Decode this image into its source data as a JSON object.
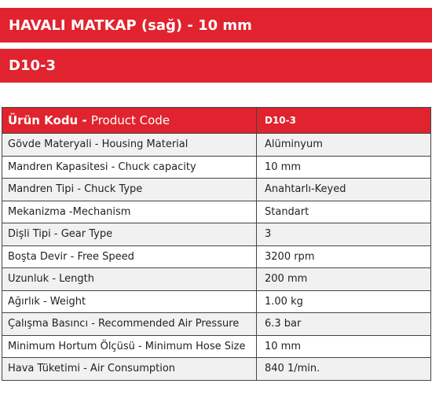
{
  "banner": {
    "title": "HAVALI MATKAP (sağ) - 10 mm",
    "code": "D10-3"
  },
  "table": {
    "header": {
      "label_bold": "Ürün Kodu - ",
      "label_regular": "Product Code",
      "value": "D10-3"
    },
    "rows": [
      {
        "label": "Gövde Materyali - Housing Material",
        "value": "Alüminyum"
      },
      {
        "label": "Mandren Kapasitesi - Chuck capacity",
        "value": "10 mm"
      },
      {
        "label": "Mandren Tipi - Chuck Type",
        "value": "Anahtarlı-Keyed"
      },
      {
        "label": "Mekanizma -Mechanism",
        "value": "Standart"
      },
      {
        "label": "Dişli Tipi - Gear Type",
        "value": "3"
      },
      {
        "label": "Boşta Devir - Free Speed",
        "value": "3200 rpm"
      },
      {
        "label": "Uzunluk - Length",
        "value": "200 mm"
      },
      {
        "label": "Ağırlık - Weight",
        "value": "1.00 kg"
      },
      {
        "label": "Çalışma Basıncı - Recommended Air Pressure",
        "value": "6.3 bar"
      },
      {
        "label": "Minimum Hortum Ölçüsü - Minimum Hose Size",
        "value": "10 mm"
      },
      {
        "label": "Hava Tüketimi - Air Consumption",
        "value": "840 1/min."
      }
    ]
  }
}
